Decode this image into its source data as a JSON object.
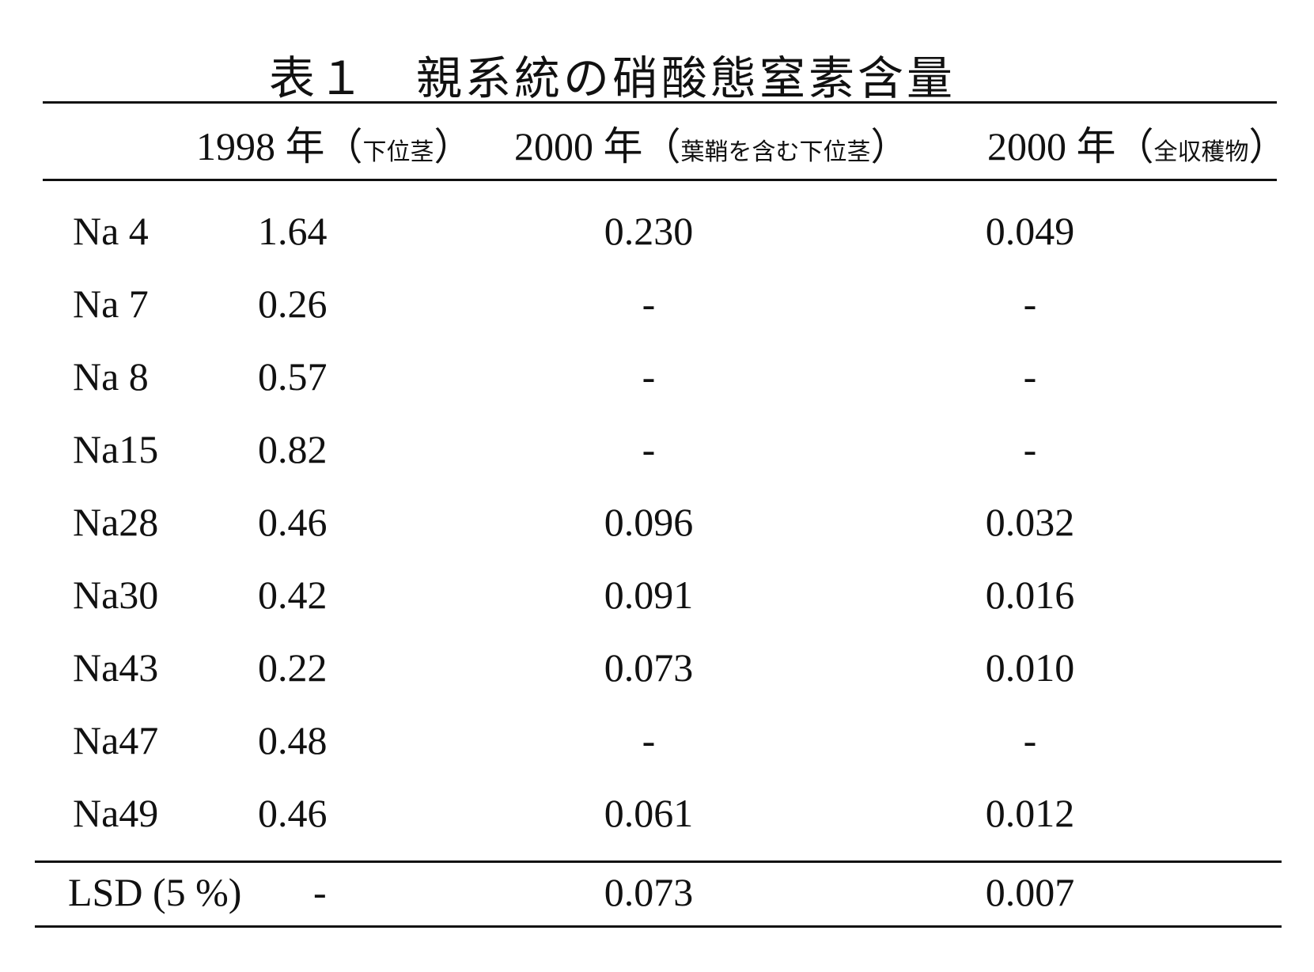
{
  "title": "表１　親系統の硝酸態窒素含量",
  "columns": [
    {
      "year": "1998 年",
      "open": "（",
      "sub": "下位茎",
      "close": "）"
    },
    {
      "year": "2000 年",
      "open": "（",
      "sub": "葉鞘を含む下位茎",
      "close": "）"
    },
    {
      "year": "2000 年",
      "open": "（",
      "sub": "全収穫物",
      "close": "）"
    }
  ],
  "rows": [
    {
      "name": "Na 4",
      "v1998": "1.64",
      "v2000a": "0.230",
      "v2000b": "0.049"
    },
    {
      "name": "Na 7",
      "v1998": "0.26",
      "v2000a": "-",
      "v2000b": "-"
    },
    {
      "name": "Na 8",
      "v1998": "0.57",
      "v2000a": "-",
      "v2000b": "-"
    },
    {
      "name": "Na15",
      "v1998": "0.82",
      "v2000a": "-",
      "v2000b": "-"
    },
    {
      "name": "Na28",
      "v1998": "0.46",
      "v2000a": "0.096",
      "v2000b": "0.032"
    },
    {
      "name": "Na30",
      "v1998": "0.42",
      "v2000a": "0.091",
      "v2000b": "0.016"
    },
    {
      "name": "Na43",
      "v1998": "0.22",
      "v2000a": "0.073",
      "v2000b": "0.010"
    },
    {
      "name": "Na47",
      "v1998": "0.48",
      "v2000a": "-",
      "v2000b": "-"
    },
    {
      "name": "Na49",
      "v1998": "0.46",
      "v2000a": "0.061",
      "v2000b": "0.012"
    }
  ],
  "lsd": {
    "name": "LSD (5 %)",
    "v1998": "-",
    "v2000a": "0.073",
    "v2000b": "0.007"
  }
}
